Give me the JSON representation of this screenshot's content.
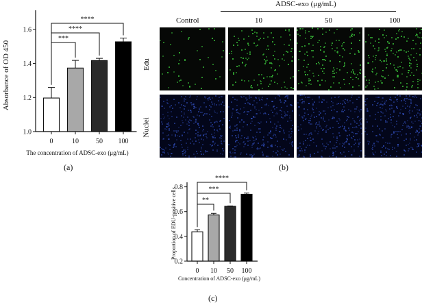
{
  "panel_a": {
    "label": "(a)",
    "chart_data": {
      "type": "bar",
      "categories": [
        "0",
        "10",
        "50",
        "100"
      ],
      "values": [
        1.197,
        1.373,
        1.417,
        1.527
      ],
      "errors": [
        0.062,
        0.045,
        0.013,
        0.022
      ],
      "bar_fills": [
        "#ffffff",
        "#a8a8a8",
        "#2a2a2a",
        "#000000"
      ],
      "xlabel": "The concentration of ADSC-exo (μg/mL)",
      "ylabel": "Absorbance of OD 450",
      "ylim": [
        1.0,
        1.7
      ],
      "yticks": [
        "1.0",
        "1.2",
        "1.4",
        "1.6"
      ],
      "ytick_values": [
        1.0,
        1.2,
        1.4,
        1.6
      ],
      "significance": [
        {
          "from": "0",
          "to": "10",
          "label": "***"
        },
        {
          "from": "0",
          "to": "50",
          "label": "****"
        },
        {
          "from": "0",
          "to": "100",
          "label": "****"
        }
      ],
      "grid": false
    }
  },
  "panel_b": {
    "label": "(b)",
    "header": "ADSC-exo (μg/mL)",
    "columns": [
      "Control",
      "10",
      "50",
      "100"
    ],
    "rows": [
      "Edu",
      "Nuclei"
    ],
    "row_colors": {
      "Edu": "#3fd43f",
      "Nuclei": "#3a5bd8"
    },
    "edu_density": [
      0.18,
      0.5,
      0.6,
      0.7
    ]
  },
  "panel_c": {
    "label": "(c)",
    "chart_data": {
      "type": "bar",
      "categories": [
        "0",
        "10",
        "50",
        "100"
      ],
      "values": [
        0.437,
        0.573,
        0.643,
        0.74
      ],
      "errors": [
        0.017,
        0.013,
        0.003,
        0.01
      ],
      "bar_fills": [
        "#ffffff",
        "#a8a8a8",
        "#2a2a2a",
        "#000000"
      ],
      "xlabel": "Concentration of ADSC-exo (μg/mL)",
      "ylabel": "Proportion of EDU-positive cells",
      "ylim": [
        0.2,
        0.82
      ],
      "yticks": [
        "0.2",
        "0.4",
        "0.6",
        "0.8"
      ],
      "ytick_values": [
        0.2,
        0.4,
        0.6,
        0.8
      ],
      "significance": [
        {
          "from": "0",
          "to": "10",
          "label": "**"
        },
        {
          "from": "0",
          "to": "50",
          "label": "***"
        },
        {
          "from": "0",
          "to": "100",
          "label": "****"
        }
      ],
      "grid": false
    }
  }
}
